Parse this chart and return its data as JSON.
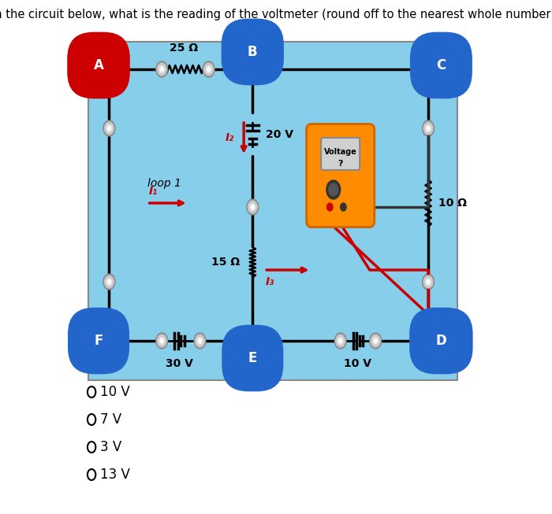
{
  "title": "In the circuit below, what is the reading of the voltmeter (round off to the nearest whole number)?",
  "title_fontsize": 11,
  "bg_color": "#87CEEB",
  "outer_bg": "#ffffff",
  "wire_color": "#000000",
  "resistor_25_label": "25 Ω",
  "resistor_15_label": "15 Ω",
  "resistor_10_label": "10 Ω",
  "voltage_20_label": "20 V",
  "voltage_30_label": "30 V",
  "voltage_10_label": "10 V",
  "loop1_label": "loop 1",
  "I1_label": "I₁",
  "I2_label": "I₂",
  "I3_label": "I₃",
  "voltmeter_label": "Voltage",
  "voltmeter_q": "?",
  "node_A": "A",
  "node_B": "B",
  "node_C": "C",
  "node_D": "D",
  "node_E": "E",
  "node_F": "F",
  "node_label_color_A": "#cc0000",
  "node_label_color": "#2266cc",
  "label_text_color": "white",
  "choices": [
    "10 V",
    "7 V",
    "3 V",
    "13 V"
  ]
}
